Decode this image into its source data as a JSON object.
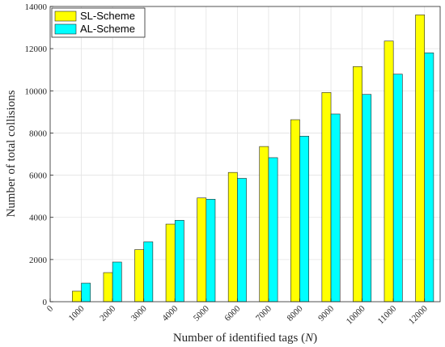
{
  "chart_data": {
    "type": "bar",
    "categories": [
      "1000",
      "2000",
      "3000",
      "4000",
      "5000",
      "6000",
      "7000",
      "8000",
      "9000",
      "10000",
      "11000",
      "12000"
    ],
    "x_ticks": [
      "0",
      "1000",
      "2000",
      "3000",
      "4000",
      "5000",
      "6000",
      "7000",
      "8000",
      "9000",
      "10000",
      "11000",
      "12000"
    ],
    "series": [
      {
        "name": "SL-Scheme",
        "color": "#ffff00",
        "values": [
          500,
          1380,
          2470,
          3680,
          4920,
          6130,
          7360,
          8630,
          9920,
          11150,
          12360,
          13600
        ]
      },
      {
        "name": "AL-Scheme",
        "color": "#00ffff",
        "values": [
          880,
          1880,
          2840,
          3860,
          4860,
          5850,
          6830,
          7850,
          8900,
          9830,
          10790,
          11800
        ]
      }
    ],
    "xlabel": "Number of identified tags (N)",
    "xlabel_parts": {
      "prefix": "Number of identified tags (",
      "var": "N",
      "suffix": ")"
    },
    "ylabel": "Number of total collisions",
    "ylim": [
      0,
      14000
    ],
    "y_ticks": [
      0,
      2000,
      4000,
      6000,
      8000,
      10000,
      12000,
      14000
    ],
    "grid": true,
    "legend_position": "top-left"
  }
}
